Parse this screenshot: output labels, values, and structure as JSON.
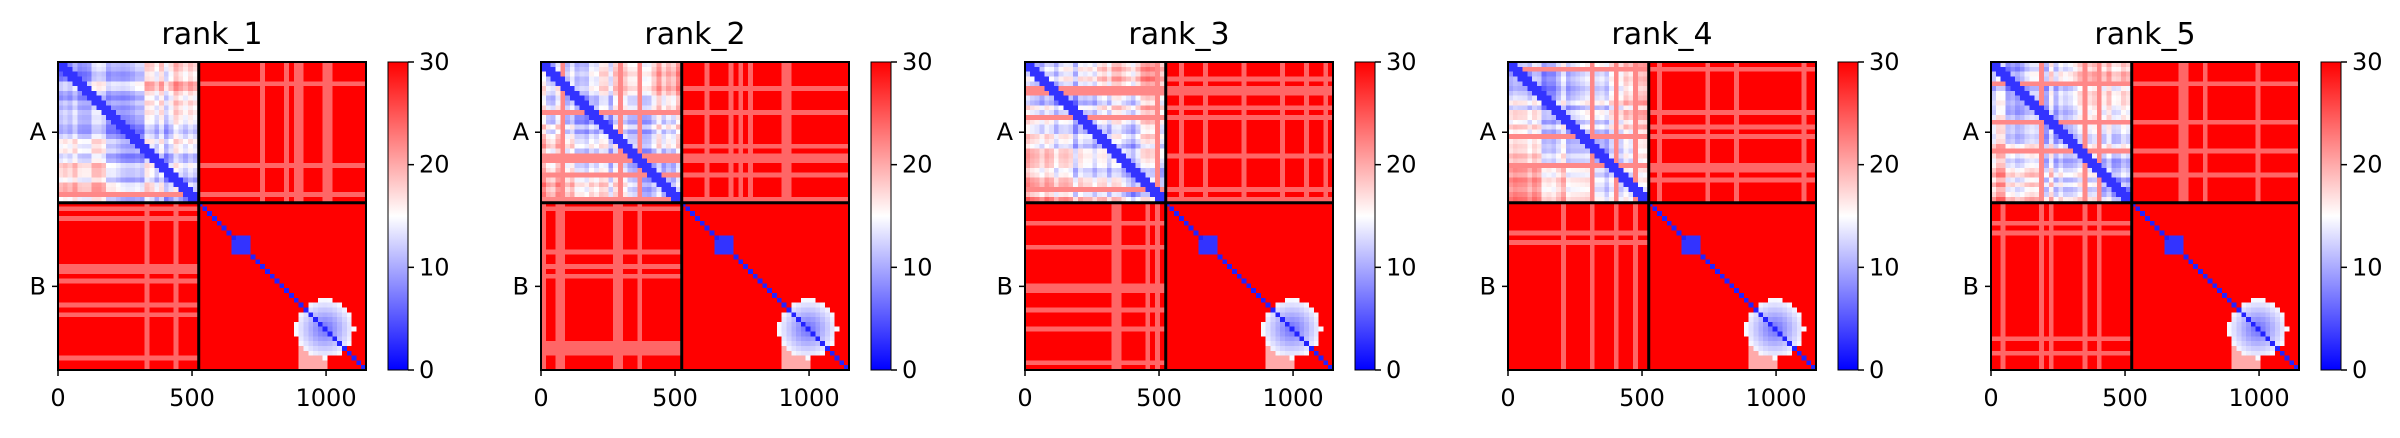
{
  "colors": {
    "low": "#0000ff",
    "mid": "#ffffff",
    "high": "#ff0000",
    "frame": "#000000"
  },
  "chart_data": [
    {
      "type": "heatmap",
      "title": "rank_1",
      "xlabel": "",
      "ylabel": "",
      "x_ticks": [
        "0",
        "500",
        "1000"
      ],
      "x_tick_values": [
        0,
        500,
        1000
      ],
      "y_tick_labels": [
        "A",
        "B"
      ],
      "y_tick_values": [
        262,
        837
      ],
      "xlim": [
        0,
        1149
      ],
      "chain_boundary": 525,
      "colorbar": {
        "min": 0,
        "max": 30,
        "ticks": [
          "0",
          "10",
          "20",
          "30"
        ],
        "tick_values": [
          0,
          10,
          20,
          30
        ]
      },
      "grid": false
    },
    {
      "type": "heatmap",
      "title": "rank_2",
      "xlabel": "",
      "ylabel": "",
      "x_ticks": [
        "0",
        "500",
        "1000"
      ],
      "x_tick_values": [
        0,
        500,
        1000
      ],
      "y_tick_labels": [
        "A",
        "B"
      ],
      "y_tick_values": [
        262,
        837
      ],
      "xlim": [
        0,
        1149
      ],
      "chain_boundary": 525,
      "colorbar": {
        "min": 0,
        "max": 30,
        "ticks": [
          "0",
          "10",
          "20",
          "30"
        ],
        "tick_values": [
          0,
          10,
          20,
          30
        ]
      },
      "grid": false
    },
    {
      "type": "heatmap",
      "title": "rank_3",
      "xlabel": "",
      "ylabel": "",
      "x_ticks": [
        "0",
        "500",
        "1000"
      ],
      "x_tick_values": [
        0,
        500,
        1000
      ],
      "y_tick_labels": [
        "A",
        "B"
      ],
      "y_tick_values": [
        262,
        837
      ],
      "xlim": [
        0,
        1149
      ],
      "chain_boundary": 525,
      "colorbar": {
        "min": 0,
        "max": 30,
        "ticks": [
          "0",
          "10",
          "20",
          "30"
        ],
        "tick_values": [
          0,
          10,
          20,
          30
        ]
      },
      "grid": false
    },
    {
      "type": "heatmap",
      "title": "rank_4",
      "xlabel": "",
      "ylabel": "",
      "x_ticks": [
        "0",
        "500",
        "1000"
      ],
      "x_tick_values": [
        0,
        500,
        1000
      ],
      "y_tick_labels": [
        "A",
        "B"
      ],
      "y_tick_values": [
        262,
        837
      ],
      "xlim": [
        0,
        1149
      ],
      "chain_boundary": 525,
      "colorbar": {
        "min": 0,
        "max": 30,
        "ticks": [
          "0",
          "10",
          "20",
          "30"
        ],
        "tick_values": [
          0,
          10,
          20,
          30
        ]
      },
      "grid": false
    },
    {
      "type": "heatmap",
      "title": "rank_5",
      "xlabel": "",
      "ylabel": "",
      "x_ticks": [
        "0",
        "500",
        "1000"
      ],
      "x_tick_values": [
        0,
        500,
        1000
      ],
      "y_tick_labels": [
        "A",
        "B"
      ],
      "y_tick_values": [
        262,
        837
      ],
      "xlim": [
        0,
        1149
      ],
      "chain_boundary": 525,
      "colorbar": {
        "min": 0,
        "max": 30,
        "ticks": [
          "0",
          "10",
          "20",
          "30"
        ],
        "tick_values": [
          0,
          10,
          20,
          30
        ]
      },
      "grid": false
    }
  ]
}
